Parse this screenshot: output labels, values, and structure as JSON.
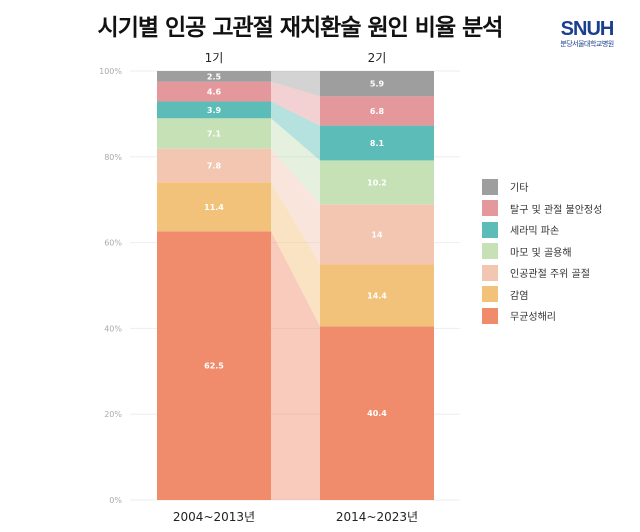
{
  "title": "시기별 인공 고관절 재치환술 원인 비율 분석",
  "logo": {
    "text": "SNUH",
    "subtext": "분당서울대학교병원"
  },
  "chart_data": {
    "type": "bar",
    "stacked": true,
    "percent": true,
    "group_labels": [
      "1기",
      "2기"
    ],
    "categories": [
      "2004~2013년",
      "2014~2023년"
    ],
    "ylim": [
      0,
      100
    ],
    "yticks": [
      "0%",
      "20%",
      "40%",
      "60%",
      "80%",
      "100%"
    ],
    "grid": true,
    "legend_position": "right",
    "series": [
      {
        "name": "무균성해리",
        "color": "#f08b6b",
        "values": [
          62.5,
          40.4
        ]
      },
      {
        "name": "감염",
        "color": "#f2c27b",
        "values": [
          11.4,
          14.4
        ]
      },
      {
        "name": "인공관절 주위 골절",
        "color": "#f2c6b0",
        "values": [
          7.8,
          14
        ]
      },
      {
        "name": "마모 및 골용해",
        "color": "#c6e1b5",
        "values": [
          7.1,
          10.2
        ]
      },
      {
        "name": "세라믹 파손",
        "color": "#5cbcb7",
        "values": [
          3.9,
          8.1
        ]
      },
      {
        "name": "탈구 및 관절 불안정성",
        "color": "#e5989c",
        "values": [
          4.6,
          6.8
        ]
      },
      {
        "name": "기타",
        "color": "#9e9e9e",
        "values": [
          2.5,
          5.9
        ]
      }
    ]
  }
}
